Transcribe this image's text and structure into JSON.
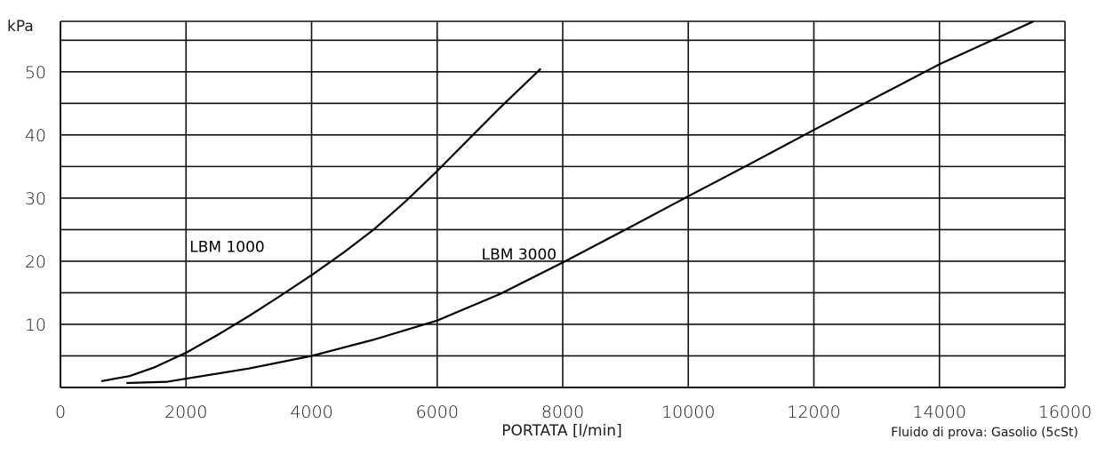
{
  "chart_data": {
    "type": "line",
    "title": "",
    "ylabel": "kPa",
    "xlabel": "PORTATA [l/min]",
    "note": "Fluido di prova: Gasolio (5cSt)",
    "xlim": [
      0,
      16000
    ],
    "ylim": [
      0,
      58
    ],
    "x_ticks": [
      0,
      2000,
      4000,
      6000,
      8000,
      10000,
      12000,
      14000,
      16000
    ],
    "y_ticks": [
      10,
      20,
      30,
      40,
      50
    ],
    "y_gridlines": [
      5,
      10,
      15,
      20,
      25,
      30,
      35,
      40,
      45,
      50,
      55,
      58
    ],
    "grid": true,
    "series": [
      {
        "name": "LBM 1000",
        "points": [
          [
            650,
            1
          ],
          [
            1100,
            1.8
          ],
          [
            1500,
            3.2
          ],
          [
            2000,
            5.5
          ],
          [
            2500,
            8.3
          ],
          [
            3000,
            11.3
          ],
          [
            3500,
            14.5
          ],
          [
            4000,
            17.8
          ],
          [
            4500,
            21.3
          ],
          [
            5000,
            25.1
          ],
          [
            5500,
            29.5
          ],
          [
            6000,
            34.3
          ],
          [
            6500,
            39.3
          ],
          [
            7000,
            44.3
          ],
          [
            7650,
            50.5
          ]
        ]
      },
      {
        "name": "LBM 3000",
        "points": [
          [
            1050,
            0.7
          ],
          [
            1700,
            0.9
          ],
          [
            2000,
            1.4
          ],
          [
            3000,
            3
          ],
          [
            4000,
            5
          ],
          [
            5000,
            7.6
          ],
          [
            6000,
            10.6
          ],
          [
            7000,
            14.8
          ],
          [
            8000,
            19.8
          ],
          [
            9000,
            25
          ],
          [
            10000,
            30.3
          ],
          [
            11000,
            35.5
          ],
          [
            12000,
            40.8
          ],
          [
            13000,
            46
          ],
          [
            14000,
            51.2
          ],
          [
            15500,
            58
          ]
        ]
      }
    ]
  }
}
